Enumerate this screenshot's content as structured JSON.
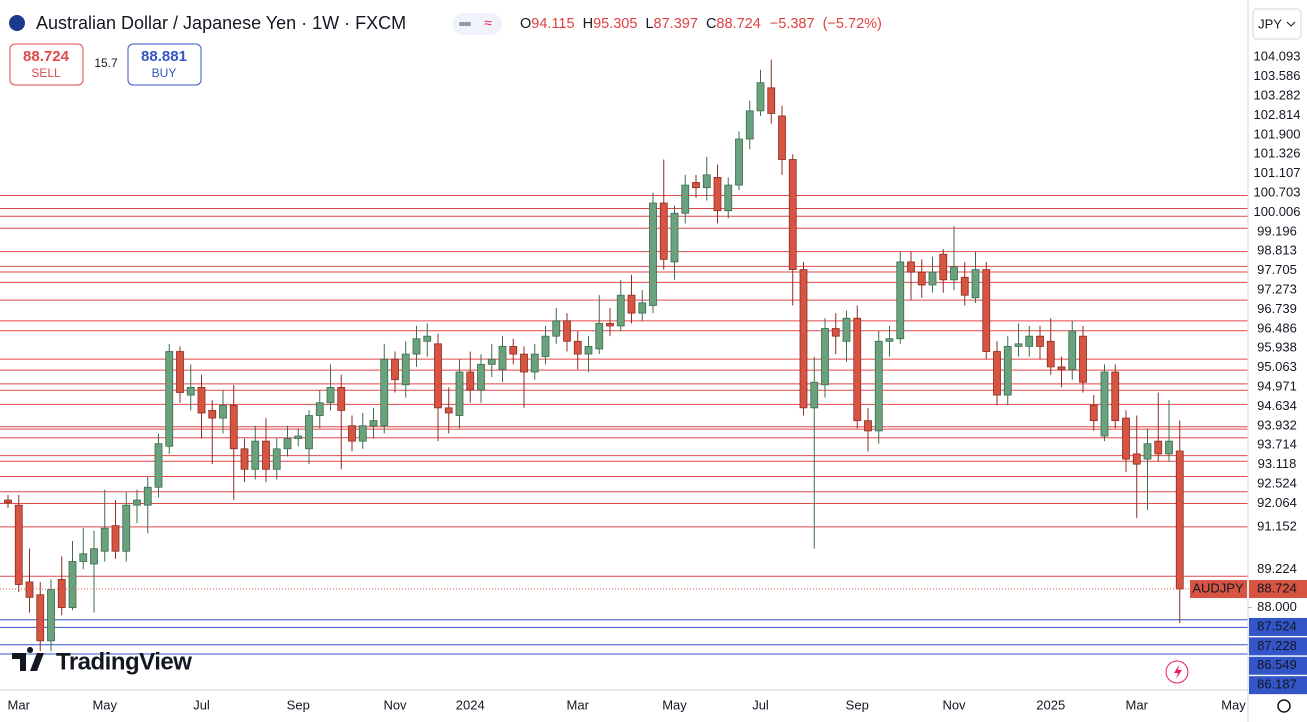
{
  "chart_data": {
    "type": "candlestick",
    "title": "Australian Dollar / Japanese Yen · 1W · FXCM",
    "ohlc_letters": [
      "O",
      "H",
      "L",
      "C"
    ],
    "change": "−5.387",
    "change_pct": "(−5.72%)",
    "currency": "JPY",
    "symbol_label": "AUDJPY",
    "up_color": "#6aa27d",
    "down_color": "#d75442",
    "level_color_above": "#e04848",
    "level_color_below": "#3355c8",
    "categories": [
      null,
      "Mar",
      null,
      null,
      null,
      null,
      null,
      null,
      null,
      "May",
      null,
      null,
      null,
      null,
      null,
      null,
      null,
      null,
      "Jul",
      null,
      null,
      null,
      null,
      null,
      null,
      null,
      null,
      "Sep",
      null,
      null,
      null,
      null,
      null,
      null,
      null,
      null,
      "Nov",
      null,
      null,
      null,
      null,
      null,
      null,
      "2024",
      null,
      null,
      null,
      null,
      null,
      null,
      null,
      null,
      null,
      "Mar",
      null,
      null,
      null,
      null,
      null,
      null,
      null,
      null,
      "May",
      null,
      null,
      null,
      null,
      null,
      null,
      null,
      "Jul",
      null,
      null,
      null,
      null,
      null,
      null,
      null,
      null,
      "Sep",
      null,
      null,
      null,
      null,
      null,
      null,
      null,
      null,
      "Nov",
      null,
      null,
      null,
      null,
      null,
      null,
      null,
      null,
      "2025",
      null,
      null,
      null,
      null,
      null,
      null,
      null,
      "Mar",
      null,
      null,
      null,
      null,
      null,
      null,
      null,
      null,
      "May"
    ],
    "open": [
      92.2,
      92.0,
      89.0,
      88.5,
      86.7,
      89.1,
      88.0,
      89.8,
      89.7,
      90.2,
      91.2,
      90.2,
      92.0,
      92.0,
      92.7,
      94.3,
      98.0,
      96.3,
      96.6,
      95.7,
      95.4,
      95.9,
      94.2,
      93.4,
      94.5,
      93.4,
      94.2,
      94.6,
      94.2,
      95.5,
      96.0,
      96.6,
      95.1,
      94.5,
      95.1,
      95.1,
      97.7,
      96.7,
      97.9,
      98.4,
      98.3,
      95.8,
      95.5,
      97.2,
      96.5,
      97.5,
      97.3,
      98.2,
      97.9,
      97.2,
      97.8,
      98.6,
      99.2,
      98.4,
      97.9,
      98.1,
      99.1,
      99.0,
      100.2,
      99.5,
      99.8,
      103.8,
      101.5,
      103.4,
      104.6,
      104.4,
      104.8,
      103.5,
      104.5,
      106.3,
      107.4,
      108.3,
      107.2,
      105.5,
      101.2,
      95.8,
      96.7,
      98.9,
      98.4,
      99.3,
      95.3,
      94.9,
      98.4,
      98.5,
      101.5,
      101.1,
      100.6,
      101.8,
      100.8,
      100.9,
      100.1,
      101.2,
      98.0,
      96.3,
      98.2,
      98.2,
      98.6,
      98.4,
      97.4,
      97.3,
      98.6,
      95.9,
      94.7,
      97.2,
      95.4,
      94.0,
      93.8,
      94.5,
      94.0,
      94.115,
      null,
      null,
      null,
      null,
      null
    ],
    "high": [
      92.4,
      92.4,
      90.3,
      89.0,
      89.1,
      90.0,
      90.6,
      91.1,
      91.0,
      92.6,
      92.2,
      92.5,
      92.6,
      93.1,
      94.8,
      98.3,
      98.2,
      97.5,
      97.1,
      96.1,
      96.5,
      96.7,
      94.6,
      95.1,
      95.4,
      94.6,
      95.1,
      95.0,
      95.7,
      96.5,
      97.5,
      97.1,
      95.5,
      95.6,
      95.8,
      98.3,
      98.0,
      98.4,
      99.0,
      99.1,
      98.7,
      96.6,
      97.7,
      98.0,
      97.9,
      98.3,
      98.6,
      98.5,
      98.2,
      98.3,
      99.0,
      99.7,
      99.5,
      98.8,
      98.6,
      100.2,
      99.7,
      100.8,
      101.0,
      100.4,
      104.2,
      105.5,
      103.7,
      104.9,
      104.9,
      105.6,
      105.3,
      104.8,
      106.6,
      107.8,
      109.0,
      109.4,
      107.6,
      105.7,
      101.5,
      97.8,
      99.3,
      99.5,
      99.6,
      99.8,
      95.8,
      98.8,
      99.0,
      101.9,
      101.9,
      101.6,
      101.7,
      102.0,
      102.9,
      101.5,
      101.9,
      101.5,
      98.4,
      98.6,
      99.1,
      99.0,
      99.0,
      99.3,
      97.8,
      99.2,
      99.0,
      96.3,
      97.5,
      97.5,
      95.7,
      95.5,
      95.0,
      96.4,
      96.1,
      95.305,
      null,
      null,
      null,
      null,
      null
    ],
    "low": [
      91.9,
      88.6,
      87.8,
      86.3,
      86.3,
      87.7,
      87.9,
      89.5,
      87.8,
      89.8,
      89.9,
      89.8,
      91.3,
      90.9,
      92.3,
      94.0,
      96.0,
      95.7,
      94.6,
      93.6,
      94.8,
      92.2,
      92.9,
      93.0,
      92.9,
      93.0,
      93.9,
      94.3,
      93.6,
      95.0,
      95.7,
      93.4,
      94.1,
      94.2,
      94.6,
      94.8,
      96.4,
      96.2,
      97.4,
      97.8,
      94.5,
      94.8,
      95.0,
      96.0,
      96.0,
      97.0,
      96.8,
      97.5,
      95.8,
      96.9,
      97.5,
      98.3,
      98.0,
      97.3,
      97.2,
      97.9,
      98.6,
      98.8,
      99.1,
      99.2,
      99.5,
      101.2,
      100.8,
      103.0,
      104.0,
      103.9,
      103.0,
      103.2,
      104.3,
      105.9,
      107.2,
      106.9,
      104.9,
      99.8,
      95.5,
      90.3,
      96.2,
      97.9,
      97.6,
      95.0,
      94.1,
      94.4,
      97.8,
      98.3,
      100.0,
      100.1,
      100.3,
      100.3,
      100.4,
      99.8,
      99.9,
      97.7,
      95.9,
      95.9,
      97.8,
      97.8,
      97.7,
      97.1,
      96.6,
      96.9,
      96.4,
      94.9,
      94.5,
      95.0,
      93.3,
      91.5,
      91.8,
      93.7,
      93.7,
      87.397,
      null,
      null,
      null,
      null,
      null
    ],
    "close": [
      92.1,
      88.9,
      88.4,
      86.7,
      88.7,
      88.0,
      89.8,
      90.1,
      90.3,
      91.1,
      90.2,
      92.0,
      92.2,
      92.7,
      94.4,
      98.0,
      96.4,
      96.6,
      95.6,
      95.4,
      95.9,
      94.2,
      93.4,
      94.5,
      93.4,
      94.2,
      94.6,
      94.7,
      95.5,
      96.0,
      96.6,
      95.7,
      94.5,
      95.1,
      95.3,
      97.7,
      96.9,
      97.9,
      98.5,
      98.6,
      95.8,
      95.6,
      97.2,
      96.5,
      97.5,
      97.7,
      98.2,
      97.9,
      97.2,
      97.9,
      98.6,
      99.2,
      98.4,
      97.9,
      98.2,
      99.1,
      99.0,
      100.2,
      99.5,
      99.9,
      103.8,
      101.6,
      103.4,
      104.5,
      104.4,
      104.9,
      103.5,
      104.5,
      106.3,
      107.4,
      108.5,
      107.3,
      105.5,
      101.2,
      95.8,
      96.8,
      98.9,
      98.6,
      99.3,
      95.3,
      94.9,
      98.4,
      98.5,
      101.5,
      101.1,
      100.6,
      101.1,
      100.8,
      101.3,
      100.2,
      101.2,
      98.0,
      96.3,
      98.2,
      98.3,
      98.6,
      98.2,
      97.4,
      97.3,
      98.8,
      96.8,
      95.3,
      97.2,
      95.3,
      93.8,
      93.6,
      94.4,
      94.0,
      94.5,
      88.724,
      null,
      null,
      null,
      null,
      null
    ],
    "ylim": [
      84.78,
      111.73
    ],
    "yticks": [
      {
        "value": 88,
        "label": "88.000"
      }
    ],
    "levels": [
      104.093,
      103.586,
      103.282,
      102.814,
      {
        "value": 101.9,
        "label": "101.900"
      },
      101.326,
      101.107,
      100.703,
      100.006,
      99.196,
      98.813,
      97.705,
      97.273,
      96.739,
      96.486,
      95.938,
      95.063,
      94.971,
      94.634,
      93.932,
      93.714,
      93.118,
      92.524,
      92.064,
      91.152,
      89.224,
      87.524,
      87.228,
      86.549,
      86.187
    ]
  },
  "trade": {
    "sell_price": 88.724,
    "sell_label": "SELL",
    "spread": 15.7,
    "buy_price": 88.881,
    "buy_label": "BUY"
  },
  "branding": {
    "logo": "TradingView"
  }
}
